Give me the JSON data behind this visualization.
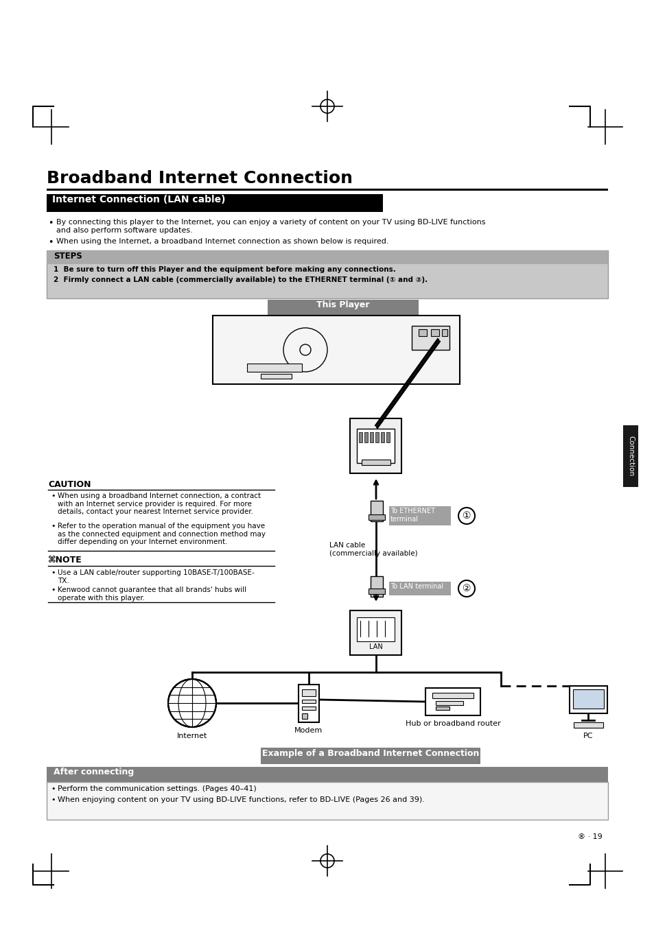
{
  "title": "Broadband Internet Connection",
  "section_header": "Internet Connection (LAN cable)",
  "bullet1": "By connecting this player to the Internet, you can enjoy a variety of content on your TV using BD-LIVE functions\nand also perform software updates.",
  "bullet2": "When using the Internet, a broadband Internet connection as shown below is required.",
  "steps_header": "STEPS",
  "step1": "Be sure to turn off this Player and the equipment before making any connections.",
  "step2": "Firmly connect a LAN cable (commercially available) to the ETHERNET terminal (① and ②).",
  "this_player_label": "This Player",
  "caution_header": "CAUTION",
  "caution1": "When using a broadband Internet connection, a contract\nwith an Internet service provider is required. For more\ndetails, contact your nearest Internet service provider.",
  "caution2": "Refer to the operation manual of the equipment you have\nas the connected equipment and connection method may\ndiffer depending on your Internet environment.",
  "note_header": "NOTE",
  "note1": "Use a LAN cable/router supporting 10BASE-T/100BASE-\nTX.",
  "note2": "Kenwood cannot guarantee that all brands' hubs will\noperate with this player.",
  "to_ethernet": "To ETHERNET\nterminal",
  "lan_cable_label": "LAN cable\n(commercially available)",
  "to_lan_terminal": "To LAN terminal",
  "lan_label": "LAN",
  "internet_label": "Internet",
  "modem_label": "Modem",
  "hub_label": "Hub or broadband router",
  "pc_label": "PC",
  "example_label": "Example of a Broadband Internet Connection",
  "after_label": "After connecting",
  "after1": "Perform the communication settings. (Pages 40–41)",
  "after2": "When enjoying content on your TV using BD-LIVE functions, refer to BD-LIVE (Pages 26 and 39).",
  "connection_tab": "Connection",
  "page_label": "® · 19",
  "bg_color": "#ffffff",
  "header_bg": "#000000",
  "header_text": "#ffffff",
  "steps_bg": "#c8c8c8",
  "steps_border": "#999999",
  "gray_label_bg": "#a0a0a0",
  "gray_label_text": "#ffffff",
  "example_bg": "#808080",
  "after_bg": "#808080",
  "after_box_bg": "#f0f0f0",
  "tab_bg": "#1a1a1a"
}
